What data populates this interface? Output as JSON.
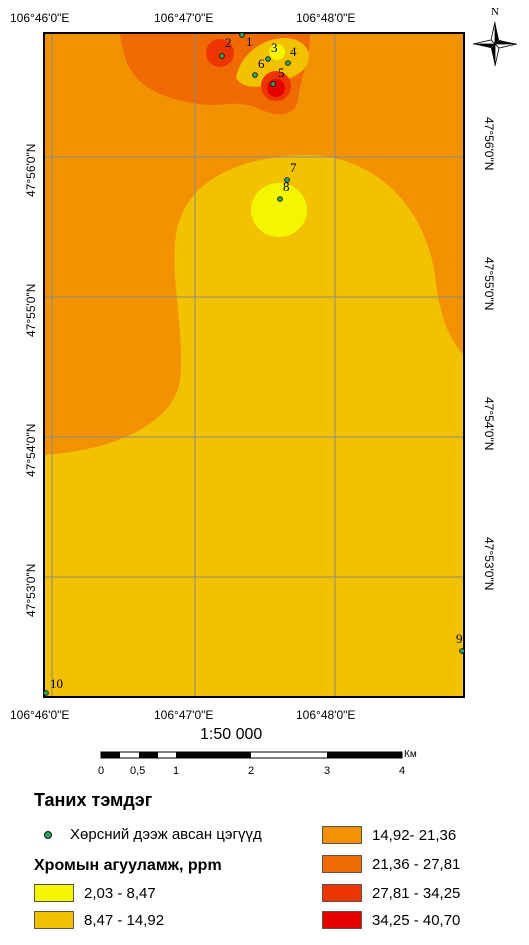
{
  "map": {
    "top_labels": [
      "106°46'0\"E",
      "106°47'0\"E",
      "106°48'0\"E"
    ],
    "bottom_labels": [
      "106°46'0\"E",
      "106°47'0\"E",
      "106°48'0\"E"
    ],
    "left_labels": [
      "47°56'0\"N",
      "47°55'0\"N",
      "47°54'0\"N",
      "47°53'0\"N"
    ],
    "right_labels": [
      "47°56'0\"N",
      "47°55'0\"N",
      "47°54'0\"N",
      "47°53'0\"N"
    ],
    "north_label": "N",
    "points": [
      "1",
      "2",
      "3",
      "4",
      "5",
      "6",
      "7",
      "8",
      "9",
      "10"
    ],
    "colors": {
      "c1": "#f5f500",
      "c2": "#f2c200",
      "c3": "#f39200",
      "c4": "#ef6a00",
      "c5": "#ee3500",
      "c6": "#e60000"
    }
  },
  "scale": {
    "text": "1:50 000",
    "unit": "Км",
    "ticks": [
      "0",
      "0,5",
      "1",
      "2",
      "3",
      "4"
    ]
  },
  "legend": {
    "title": "Таних тэмдэг",
    "sample_label": "Хөрсний дээж авсан цэгүүд",
    "subtitle": "Хромын агууламж, ppm",
    "classes": [
      {
        "label": "2,03 - 8,47",
        "color": "#f5f500"
      },
      {
        "label": "8,47 - 14,92",
        "color": "#f2c200"
      },
      {
        "label": "14,92- 21,36",
        "color": "#f39200"
      },
      {
        "label": "21,36 - 27,81",
        "color": "#ef6a00"
      },
      {
        "label": "27,81 - 34,25",
        "color": "#ee3500"
      },
      {
        "label": "34,25 - 40,70",
        "color": "#e60000"
      }
    ]
  }
}
